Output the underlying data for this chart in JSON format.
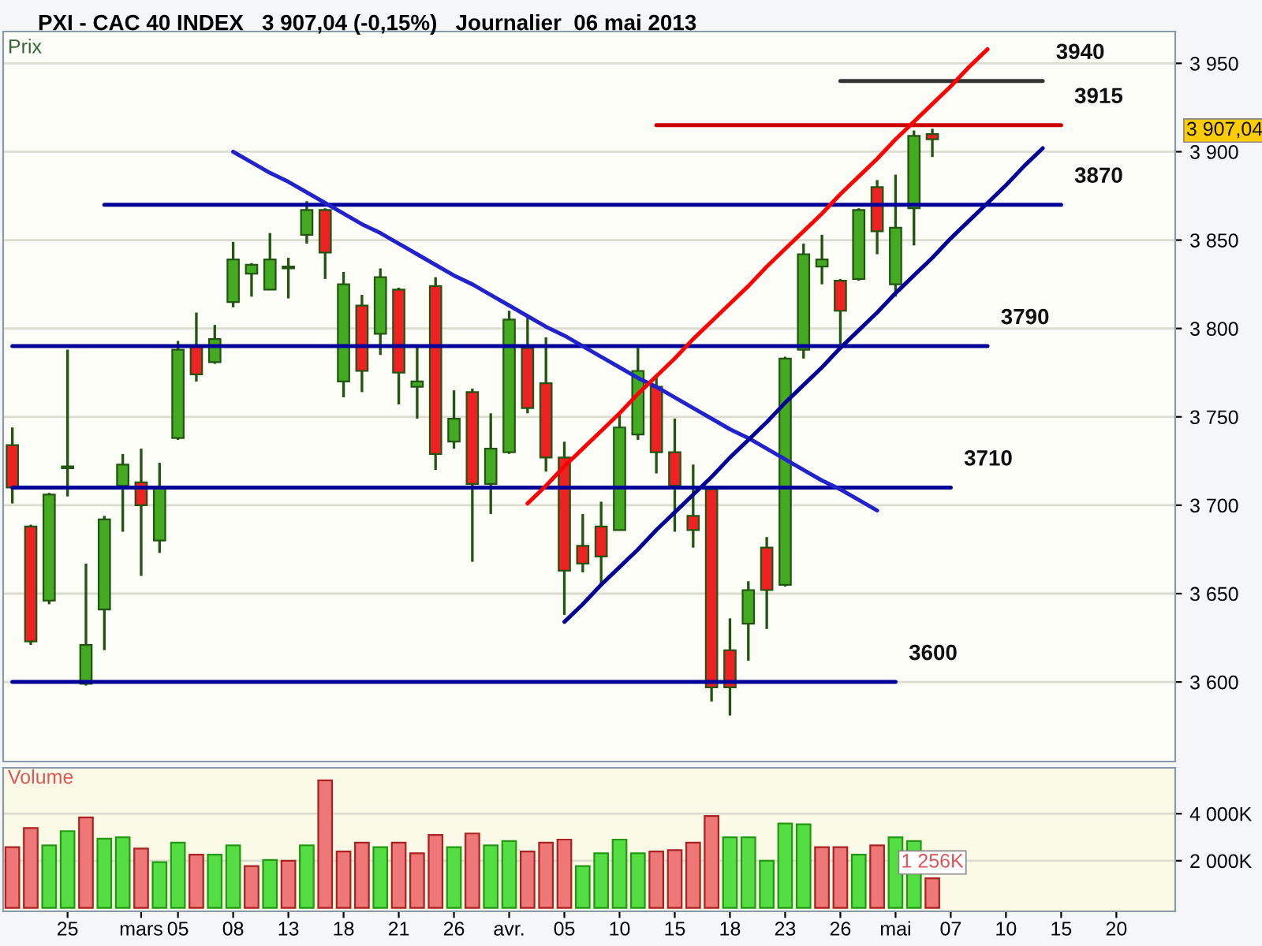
{
  "chart_data": [
    {
      "type": "candlestick",
      "title": "PXI - CAC 40 INDEX   3 907,04 (-0,15%)   Journalier  06 mai 2013",
      "ylabel": "Prix",
      "categories": [
        null,
        null,
        null,
        null,
        null,
        null,
        null,
        null,
        null,
        null,
        null,
        null,
        null,
        null,
        null,
        null,
        null,
        null,
        null,
        null,
        null,
        null,
        null,
        null,
        null,
        null,
        null,
        null,
        null,
        null,
        null,
        null,
        null,
        null,
        null,
        null,
        null,
        null,
        null,
        null,
        null,
        null,
        null,
        null,
        null,
        null,
        null,
        null,
        null,
        null,
        null,
        null,
        null,
        null,
        null,
        null,
        null,
        null,
        null,
        null,
        null,
        null,
        null
      ],
      "ohlc": [
        [
          3734,
          3744,
          3701,
          3710
        ],
        [
          3688,
          3689,
          3621,
          3623
        ],
        [
          3646,
          3707,
          3644,
          3706
        ],
        [
          3721,
          3788,
          3705,
          3722
        ],
        [
          3599,
          3667,
          3598,
          3621
        ],
        [
          3641,
          3694,
          3618,
          3692
        ],
        [
          3711,
          3729,
          3685,
          3723
        ],
        [
          3713,
          3732,
          3660,
          3700
        ],
        [
          3680,
          3724,
          3673,
          3710
        ],
        [
          3738,
          3793,
          3737,
          3788
        ],
        [
          3790,
          3809,
          3770,
          3774
        ],
        [
          3781,
          3802,
          3780,
          3794
        ],
        [
          3815,
          3849,
          3812,
          3839
        ],
        [
          3831,
          3837,
          3818,
          3836
        ],
        [
          3822,
          3854,
          3822,
          3839
        ],
        [
          3834,
          3840,
          3817,
          3835
        ],
        [
          3853,
          3872,
          3848,
          3867
        ],
        [
          3867,
          3868,
          3828,
          3843
        ],
        [
          3770,
          3832,
          3761,
          3825
        ],
        [
          3813,
          3819,
          3764,
          3776
        ],
        [
          3797,
          3834,
          3785,
          3829
        ],
        [
          3822,
          3823,
          3757,
          3775
        ],
        [
          3767,
          3791,
          3749,
          3770
        ],
        [
          3824,
          3829,
          3720,
          3729
        ],
        [
          3736,
          3765,
          3732,
          3749
        ],
        [
          3764,
          3766,
          3668,
          3712
        ],
        [
          3712,
          3752,
          3695,
          3732
        ],
        [
          3730,
          3810,
          3729,
          3805
        ],
        [
          3789,
          3807,
          3752,
          3755
        ],
        [
          3769,
          3795,
          3719,
          3727
        ],
        [
          3727,
          3736,
          3638,
          3663
        ],
        [
          3677,
          3695,
          3662,
          3667
        ],
        [
          3688,
          3702,
          3655,
          3671
        ],
        [
          3686,
          3751,
          3686,
          3744
        ],
        [
          3740,
          3789,
          3737,
          3776
        ],
        [
          3767,
          3774,
          3718,
          3730
        ],
        [
          3730,
          3749,
          3685,
          3711
        ],
        [
          3694,
          3723,
          3676,
          3686
        ],
        [
          3709,
          3710,
          3589,
          3597
        ],
        [
          3618,
          3636,
          3581,
          3597
        ],
        [
          3633,
          3657,
          3612,
          3652
        ],
        [
          3676,
          3682,
          3630,
          3652
        ],
        [
          3655,
          3784,
          3654,
          3783
        ],
        [
          3788,
          3848,
          3783,
          3842
        ],
        [
          3835,
          3853,
          3825,
          3839
        ],
        [
          3827,
          3828,
          3791,
          3810
        ],
        [
          3828,
          3868,
          3827,
          3867
        ],
        [
          3880,
          3884,
          3842,
          3855
        ],
        [
          3825,
          3887,
          3818,
          3857
        ],
        [
          3868,
          3912,
          3847,
          3909
        ],
        [
          3910,
          3913,
          3897,
          3907.04
        ],
        null,
        null,
        null,
        null,
        null,
        null,
        null,
        null,
        null,
        null,
        null,
        null
      ],
      "colors": [
        "#ee2222",
        "#ee2222",
        "#44aa22",
        "#44aa22",
        "#44aa22",
        "#44aa22",
        "#44aa22",
        "#ee2222",
        "#44aa22",
        "#44aa22",
        "#ee2222",
        "#44aa22",
        "#44aa22",
        "#44aa22",
        "#44aa22",
        "#44aa22",
        "#44aa22",
        "#ee2222",
        "#44aa22",
        "#ee2222",
        "#44aa22",
        "#ee2222",
        "#44aa22",
        "#ee2222",
        "#44aa22",
        "#ee2222",
        "#44aa22",
        "#44aa22",
        "#ee2222",
        "#ee2222",
        "#ee2222",
        "#ee2222",
        "#ee2222",
        "#44aa22",
        "#44aa22",
        "#ee2222",
        "#ee2222",
        "#ee2222",
        "#ee2222",
        "#ee2222",
        "#44aa22",
        "#ee2222",
        "#44aa22",
        "#44aa22",
        "#44aa22",
        "#ee2222",
        "#44aa22",
        "#ee2222",
        "#44aa22",
        "#44aa22",
        "#ee2222",
        null,
        null,
        null,
        null,
        null,
        null,
        null,
        null,
        null,
        null,
        null,
        null
      ],
      "value_labels": [
        null,
        null,
        null,
        null,
        null,
        null,
        null,
        null,
        null,
        null,
        null,
        null,
        null,
        null,
        null,
        null,
        null,
        null,
        null,
        null,
        null,
        null,
        null,
        null,
        null,
        null,
        null,
        null,
        null,
        null,
        null,
        null,
        null,
        null,
        null,
        null,
        null,
        null,
        null,
        null,
        null,
        null,
        null,
        null,
        null,
        null,
        null,
        null,
        null,
        null,
        "3 907,04",
        null,
        null,
        null,
        null,
        null,
        null,
        null,
        null,
        null,
        null,
        null,
        null
      ],
      "series": [
        {
          "type": "line",
          "name": "3940",
          "color": "#333333",
          "values": [
            null,
            null,
            null,
            null,
            null,
            null,
            null,
            null,
            null,
            null,
            null,
            null,
            null,
            null,
            null,
            null,
            null,
            null,
            null,
            null,
            null,
            null,
            null,
            null,
            null,
            null,
            null,
            null,
            null,
            null,
            null,
            null,
            null,
            null,
            null,
            null,
            null,
            null,
            null,
            null,
            null,
            null,
            null,
            null,
            null,
            3940,
            3940,
            3940,
            3940,
            3940,
            3940,
            3940,
            3940,
            3940,
            3940,
            3940,
            3940,
            null,
            null,
            null,
            null,
            null,
            null
          ]
        },
        {
          "type": "line",
          "name": "3915",
          "color": "#cc0000",
          "values": [
            null,
            null,
            null,
            null,
            null,
            null,
            null,
            null,
            null,
            null,
            null,
            null,
            null,
            null,
            null,
            null,
            null,
            null,
            null,
            null,
            null,
            null,
            null,
            null,
            null,
            null,
            null,
            null,
            null,
            null,
            null,
            null,
            null,
            null,
            null,
            3915,
            3915,
            3915,
            3915,
            3915,
            3915,
            3915,
            3915,
            3915,
            3915,
            3915,
            3915,
            3915,
            3915,
            3915,
            3915,
            3915,
            3915,
            3915,
            3915,
            3915,
            3915,
            3915,
            null,
            null,
            null,
            null,
            null
          ]
        },
        {
          "type": "line",
          "name": "3870",
          "color": "#000099",
          "values": [
            null,
            null,
            null,
            null,
            null,
            3870,
            3870,
            3870,
            3870,
            3870,
            3870,
            3870,
            3870,
            3870,
            3870,
            3870,
            3870,
            3870,
            3870,
            3870,
            3870,
            3870,
            3870,
            3870,
            3870,
            3870,
            3870,
            3870,
            3870,
            3870,
            3870,
            3870,
            3870,
            3870,
            3870,
            3870,
            3870,
            3870,
            3870,
            3870,
            3870,
            3870,
            3870,
            3870,
            3870,
            3870,
            3870,
            3870,
            3870,
            3870,
            3870,
            3870,
            3870,
            3870,
            3870,
            3870,
            3870,
            3870,
            null,
            null,
            null,
            null,
            null
          ]
        },
        {
          "type": "line",
          "name": "3790",
          "color": "#000099",
          "values": [
            3790,
            3790,
            3790,
            3790,
            3790,
            3790,
            3790,
            3790,
            3790,
            3790,
            3790,
            3790,
            3790,
            3790,
            3790,
            3790,
            3790,
            3790,
            3790,
            3790,
            3790,
            3790,
            3790,
            3790,
            3790,
            3790,
            3790,
            3790,
            3790,
            3790,
            3790,
            3790,
            3790,
            3790,
            3790,
            3790,
            3790,
            3790,
            3790,
            3790,
            3790,
            3790,
            3790,
            3790,
            3790,
            3790,
            3790,
            3790,
            3790,
            3790,
            3790,
            3790,
            3790,
            3790,
            null,
            null,
            null,
            null,
            null,
            null,
            null,
            null,
            null
          ]
        },
        {
          "type": "line",
          "name": "3710",
          "color": "#000099",
          "values": [
            3710,
            3710,
            3710,
            3710,
            3710,
            3710,
            3710,
            3710,
            3710,
            3710,
            3710,
            3710,
            3710,
            3710,
            3710,
            3710,
            3710,
            3710,
            3710,
            3710,
            3710,
            3710,
            3710,
            3710,
            3710,
            3710,
            3710,
            3710,
            3710,
            3710,
            3710,
            3710,
            3710,
            3710,
            3710,
            3710,
            3710,
            3710,
            3710,
            3710,
            3710,
            3710,
            3710,
            3710,
            3710,
            3710,
            3710,
            3710,
            3710,
            3710,
            3710,
            3710,
            null,
            null,
            null,
            null,
            null,
            null,
            null,
            null,
            null,
            null,
            null
          ]
        },
        {
          "type": "line",
          "name": "3600",
          "color": "#000099",
          "values": [
            3600,
            3600,
            3600,
            3600,
            3600,
            3600,
            3600,
            3600,
            3600,
            3600,
            3600,
            3600,
            3600,
            3600,
            3600,
            3600,
            3600,
            3600,
            3600,
            3600,
            3600,
            3600,
            3600,
            3600,
            3600,
            3600,
            3600,
            3600,
            3600,
            3600,
            3600,
            3600,
            3600,
            3600,
            3600,
            3600,
            3600,
            3600,
            3600,
            3600,
            3600,
            3600,
            3600,
            3600,
            3600,
            3600,
            3600,
            3600,
            3600,
            null,
            null,
            null,
            null,
            null,
            null,
            null,
            null,
            null,
            null,
            null,
            null,
            null,
            null
          ]
        },
        {
          "type": "line",
          "color": "#2222cc",
          "values": [
            null,
            null,
            null,
            null,
            null,
            null,
            null,
            null,
            null,
            null,
            null,
            null,
            3900,
            3894,
            3888,
            3883,
            3877,
            3871,
            3865,
            3859,
            3854,
            3848,
            3842,
            3836,
            3830,
            3825,
            3819,
            3813,
            3807,
            3801,
            3796,
            3790,
            3784,
            3778,
            3772,
            3767,
            3761,
            3755,
            3749,
            3743,
            3738,
            3732,
            3726,
            3720,
            3714,
            3709,
            3703,
            3697,
            null,
            null,
            null,
            null,
            null,
            null,
            null,
            null,
            null,
            null,
            null,
            null,
            null,
            null,
            null
          ]
        },
        {
          "type": "line",
          "color": "#ff0000",
          "values": [
            null,
            null,
            null,
            null,
            null,
            null,
            null,
            null,
            null,
            null,
            null,
            null,
            null,
            null,
            null,
            null,
            null,
            null,
            null,
            null,
            null,
            null,
            null,
            null,
            null,
            null,
            null,
            null,
            3701,
            3711,
            3722,
            3732,
            3742,
            3752,
            3763,
            3773,
            3783,
            3794,
            3804,
            3814,
            3824,
            3835,
            3845,
            3855,
            3865,
            3876,
            3886,
            3896,
            3907,
            3917,
            3927,
            3937,
            3948,
            3958,
            null,
            null,
            null,
            null,
            null,
            null,
            null,
            null,
            null
          ]
        },
        {
          "type": "line",
          "color": "#000099",
          "values": [
            null,
            null,
            null,
            null,
            null,
            null,
            null,
            null,
            null,
            null,
            null,
            null,
            null,
            null,
            null,
            null,
            null,
            null,
            null,
            null,
            null,
            null,
            null,
            null,
            null,
            null,
            null,
            null,
            null,
            null,
            3634,
            3644,
            3655,
            3665,
            3675,
            3686,
            3696,
            3706,
            3716,
            3727,
            3737,
            3747,
            3758,
            3768,
            3778,
            3789,
            3799,
            3809,
            3820,
            3830,
            3840,
            3851,
            3861,
            3871,
            3881,
            3892,
            3902,
            null,
            null,
            null,
            null,
            null,
            null
          ]
        }
      ],
      "ylim": [
        3555,
        3968
      ],
      "yticks": [
        {
          "value": 3600,
          "label": "3 600"
        },
        {
          "value": 3650,
          "label": "3 650"
        },
        {
          "value": 3700,
          "label": "3 700"
        },
        {
          "value": 3750,
          "label": "3 750"
        },
        {
          "value": 3800,
          "label": "3 800"
        },
        {
          "value": 3850,
          "label": "3 850"
        },
        {
          "value": 3900,
          "label": "3 900"
        },
        {
          "value": 3950,
          "label": "3 950"
        }
      ],
      "grid": "y",
      "tick_labels": "y"
    },
    {
      "type": "bar",
      "ylabel": "Volume",
      "categories": [
        null,
        null,
        null,
        "25",
        null,
        null,
        null,
        "mars",
        null,
        "05",
        null,
        null,
        "08",
        null,
        null,
        "13",
        null,
        null,
        "18",
        null,
        null,
        "21",
        null,
        null,
        "26",
        null,
        null,
        "avr.",
        null,
        null,
        "05",
        null,
        null,
        "10",
        null,
        null,
        "15",
        null,
        null,
        "18",
        null,
        null,
        "23",
        null,
        null,
        "26",
        null,
        null,
        "mai",
        null,
        null,
        "07",
        null,
        null,
        "10",
        null,
        null,
        "15",
        null,
        null,
        "20",
        null,
        null
      ],
      "values": [
        2580,
        3390,
        2650,
        3260,
        3840,
        2940,
        3000,
        2520,
        1940,
        2770,
        2260,
        2260,
        2650,
        1770,
        2030,
        2000,
        2650,
        5420,
        2390,
        2770,
        2580,
        2770,
        2320,
        3100,
        2580,
        3160,
        2650,
        2840,
        2390,
        2770,
        2900,
        1770,
        2320,
        2900,
        2320,
        2390,
        2450,
        2770,
        3900,
        3000,
        3000,
        2000,
        3580,
        3550,
        2580,
        2580,
        2260,
        2650,
        3000,
        2840,
        1256,
        null,
        null,
        null,
        null,
        null,
        null,
        null,
        null,
        null,
        null,
        null,
        null
      ],
      "colors": [
        "#ee7777",
        "#ee7777",
        "#55dd44",
        "#55dd44",
        "#ee7777",
        "#55dd44",
        "#55dd44",
        "#ee7777",
        "#55dd44",
        "#55dd44",
        "#ee7777",
        "#55dd44",
        "#55dd44",
        "#ee7777",
        "#55dd44",
        "#ee7777",
        "#55dd44",
        "#ee7777",
        "#ee7777",
        "#ee7777",
        "#55dd44",
        "#ee7777",
        "#ee7777",
        "#ee7777",
        "#55dd44",
        "#ee7777",
        "#55dd44",
        "#55dd44",
        "#ee7777",
        "#ee7777",
        "#ee7777",
        "#55dd44",
        "#55dd44",
        "#55dd44",
        "#55dd44",
        "#ee7777",
        "#ee7777",
        "#ee7777",
        "#ee7777",
        "#55dd44",
        "#55dd44",
        "#55dd44",
        "#55dd44",
        "#55dd44",
        "#ee7777",
        "#ee7777",
        "#55dd44",
        "#ee7777",
        "#55dd44",
        "#55dd44",
        "#ee7777",
        null,
        null,
        null,
        null,
        null,
        null,
        null,
        null,
        null,
        null,
        null,
        null
      ],
      "value_labels": [
        null,
        null,
        null,
        null,
        null,
        null,
        null,
        null,
        null,
        null,
        null,
        null,
        null,
        null,
        null,
        null,
        null,
        null,
        null,
        null,
        null,
        null,
        null,
        null,
        null,
        null,
        null,
        null,
        null,
        null,
        null,
        null,
        null,
        null,
        null,
        null,
        null,
        null,
        null,
        null,
        null,
        null,
        null,
        null,
        null,
        null,
        null,
        null,
        null,
        null,
        "1 256K",
        null,
        null,
        null,
        null,
        null,
        null,
        null,
        null,
        null,
        null,
        null,
        null
      ],
      "ylim": [
        -150,
        5950
      ],
      "yticks": [
        {
          "value": 2000,
          "label": "2 000K"
        },
        {
          "value": 4000,
          "label": "4 000K"
        }
      ],
      "grid": "y"
    }
  ]
}
